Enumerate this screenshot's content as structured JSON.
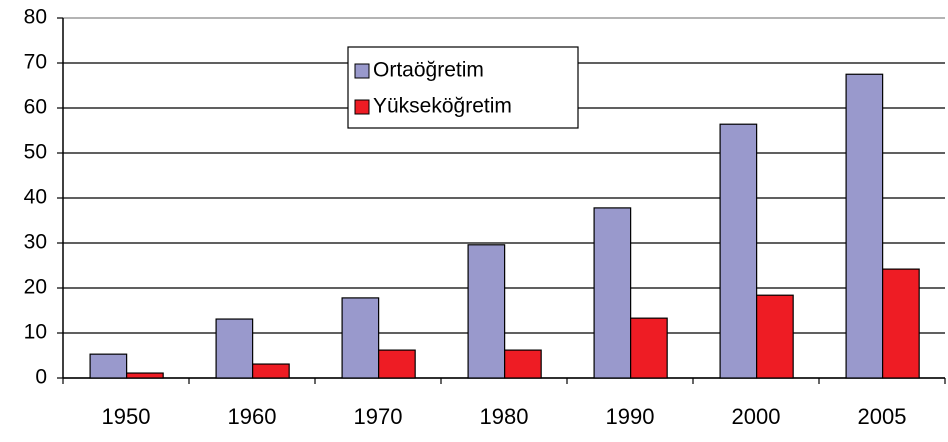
{
  "chart_data": {
    "type": "bar",
    "categories": [
      "1950",
      "1960",
      "1970",
      "1980",
      "1990",
      "2000",
      "2005"
    ],
    "series": [
      {
        "name": "Ortaöğretim",
        "color": "#9999cc",
        "values": [
          5.3,
          13.1,
          17.8,
          29.6,
          37.8,
          56.4,
          67.5
        ]
      },
      {
        "name": "Yükseköğretim",
        "color": "#ee1c24",
        "values": [
          1.1,
          3.1,
          6.2,
          6.2,
          13.3,
          18.4,
          24.2
        ]
      }
    ],
    "ylim": [
      0,
      80
    ],
    "yticks": [
      0,
      10,
      20,
      30,
      40,
      50,
      60,
      70,
      80
    ],
    "grid": true,
    "legend": "upper center"
  }
}
